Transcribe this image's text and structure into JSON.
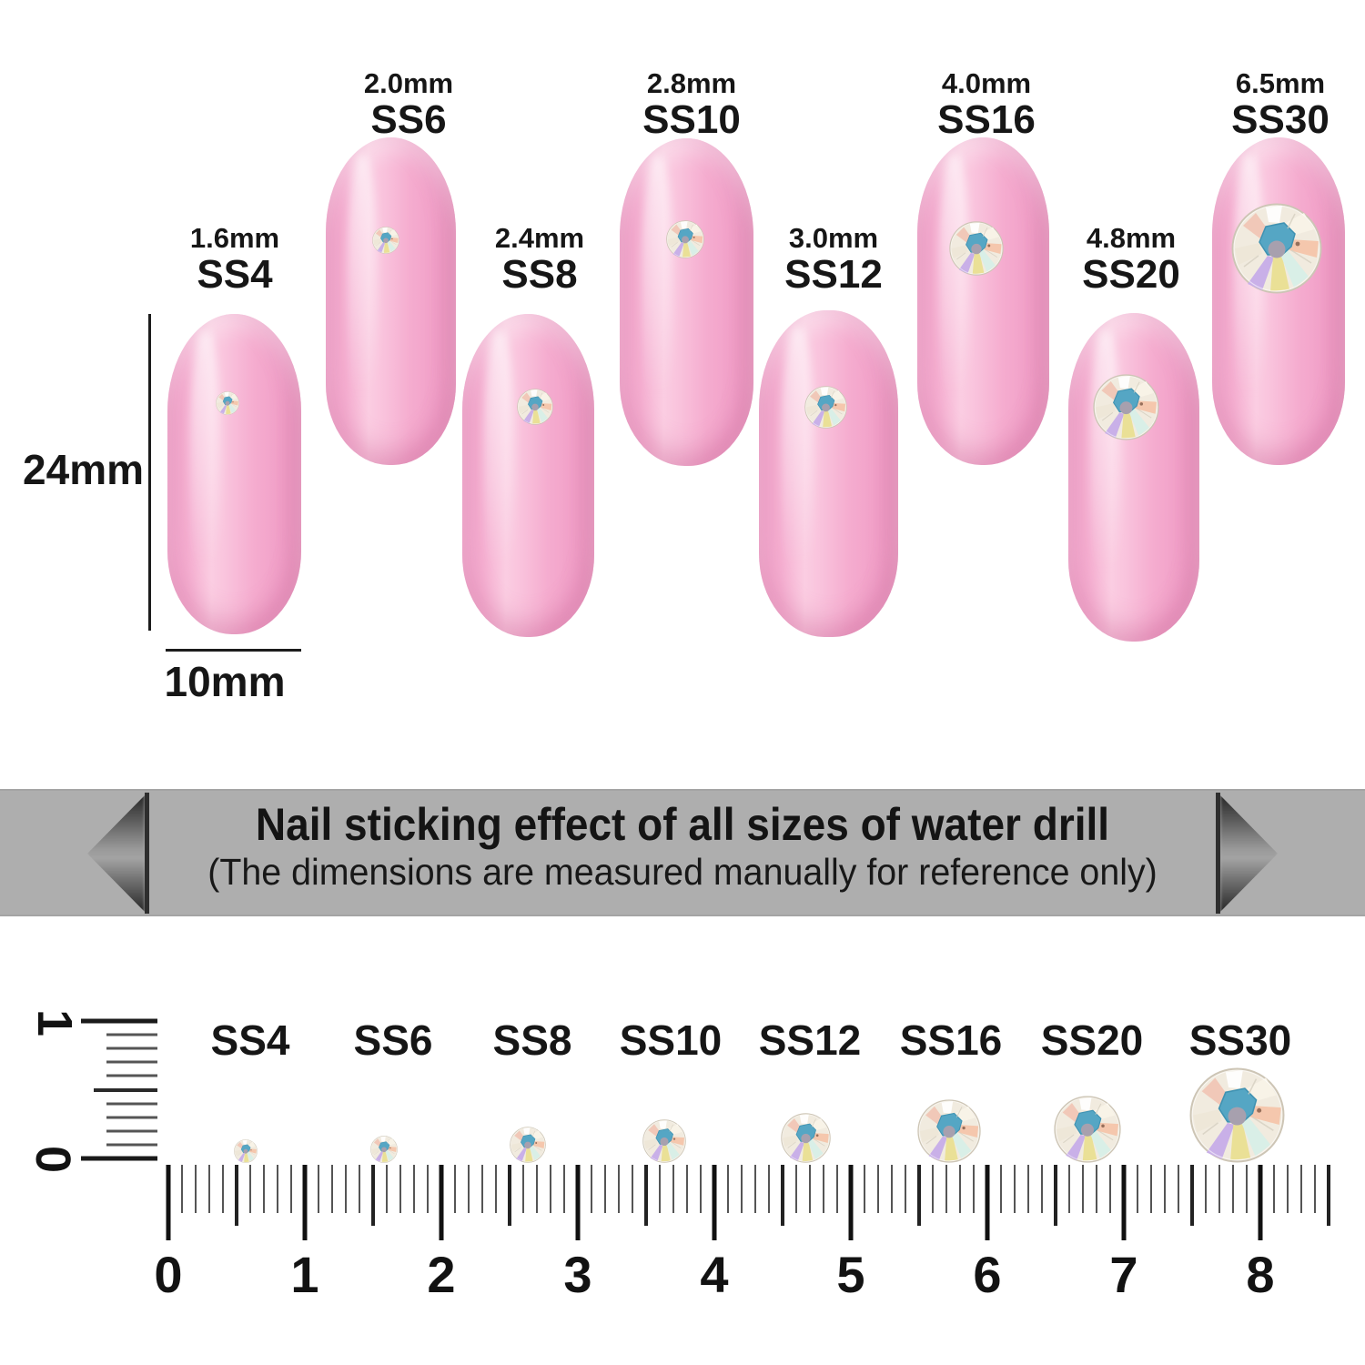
{
  "size_chart": {
    "nails": [
      {
        "size_mm": "1.6mm",
        "ss": "SS4"
      },
      {
        "size_mm": "2.0mm",
        "ss": "SS6"
      },
      {
        "size_mm": "2.4mm",
        "ss": "SS8"
      },
      {
        "size_mm": "2.8mm",
        "ss": "SS10"
      },
      {
        "size_mm": "3.0mm",
        "ss": "SS12"
      },
      {
        "size_mm": "4.0mm",
        "ss": "SS16"
      },
      {
        "size_mm": "4.8mm",
        "ss": "SS20"
      },
      {
        "size_mm": "6.5mm",
        "ss": "SS30"
      }
    ],
    "nail_height_label": "24mm",
    "nail_width_label": "10mm"
  },
  "banner": {
    "title": "Nail sticking effect of all sizes of water drill",
    "subtitle": "(The dimensions are measured manually for reference only)"
  },
  "ruler": {
    "numbers": [
      "0",
      "1",
      "2",
      "3",
      "4",
      "5",
      "6",
      "7",
      "8"
    ],
    "stone_labels": [
      "SS4",
      "SS6",
      "SS8",
      "SS10",
      "SS12",
      "SS16",
      "SS20",
      "SS30"
    ],
    "vertical_top_number": "1",
    "vertical_bottom_number": "0"
  },
  "colors": {
    "nail_pink": "#f6aed1",
    "banner_gray": "#aeaeae",
    "stone_teal": "#55a6c4",
    "text_dark": "#161616"
  }
}
